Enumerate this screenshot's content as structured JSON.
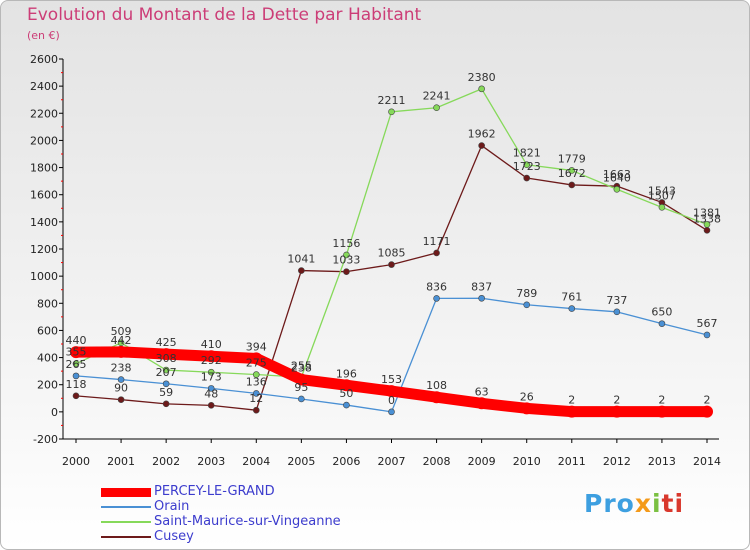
{
  "chart_data": {
    "type": "line",
    "title": "Evolution du Montant de la Dette par Habitant",
    "subtitle": "(en €)",
    "x": [
      "2000",
      "2001",
      "2002",
      "2003",
      "2004",
      "2005",
      "2006",
      "2007",
      "2008",
      "2009",
      "2010",
      "2011",
      "2012",
      "2013",
      "2014"
    ],
    "ylim": [
      -200,
      2600
    ],
    "yticks": [
      -200,
      0,
      200,
      400,
      600,
      800,
      1000,
      1200,
      1400,
      1600,
      1800,
      2000,
      2200,
      2400,
      2600
    ],
    "grid": false,
    "legend_position": "bottom-left",
    "series": [
      {
        "name": "PERCEY-LE-GRAND",
        "color": "#ff0000",
        "values": [
          440,
          442,
          425,
          410,
          394,
          238,
          196,
          153,
          108,
          63,
          26,
          2,
          2,
          2,
          2
        ],
        "labels": [
          "440",
          "442",
          "425",
          "410",
          "394",
          "238",
          "196",
          "153",
          "108",
          "63",
          "26",
          "2",
          "2",
          "2",
          "2"
        ]
      },
      {
        "name": "Orain",
        "color": "#4a90d4",
        "values": [
          265,
          238,
          207,
          173,
          136,
          95,
          50,
          0,
          836,
          837,
          789,
          761,
          737,
          650,
          567
        ],
        "labels": [
          "265",
          "238",
          "207",
          "173",
          "136",
          "95",
          "50",
          "0",
          "836",
          "837",
          "789",
          "761",
          "737",
          "650",
          "567"
        ]
      },
      {
        "name": "Saint-Maurice-sur-Vingeanne",
        "color": "#86d95a",
        "values": [
          355,
          509,
          308,
          292,
          275,
          255,
          1156,
          2211,
          2241,
          2380,
          1821,
          1779,
          1640,
          1507,
          1381
        ],
        "labels": [
          "355",
          "509",
          "308",
          "292",
          "275",
          "255",
          "1156",
          "2211",
          "2241",
          "2380",
          "1821",
          "1779",
          "1640",
          "1507",
          "1381"
        ]
      },
      {
        "name": "Cusey",
        "color": "#6d1a1a",
        "values": [
          118,
          90,
          59,
          48,
          12,
          1041,
          1033,
          1085,
          1171,
          1962,
          1723,
          1672,
          1663,
          1543,
          1338
        ],
        "labels": [
          "118",
          "90",
          "59",
          "48",
          "12",
          "1041",
          "1033",
          "1085",
          "1171",
          "1962",
          "1723",
          "1672",
          "1663",
          "1543",
          "1338"
        ]
      }
    ]
  },
  "logo": {
    "p1": "Pro",
    "p2": "x",
    "p3": "i",
    "p4": "ti"
  }
}
